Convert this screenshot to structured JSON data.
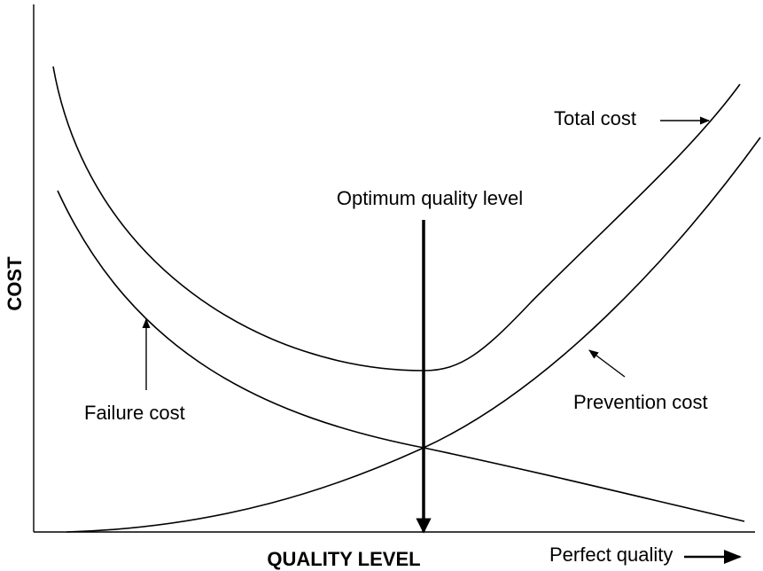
{
  "y_axis_label": "COST",
  "x_axis_label": "QUALITY LEVEL",
  "x_axis_end_label": "Perfect quality",
  "curves": {
    "total": "Total cost",
    "failure": "Failure cost",
    "prevention": "Prevention cost"
  },
  "optimum_label": "Optimum quality level"
}
